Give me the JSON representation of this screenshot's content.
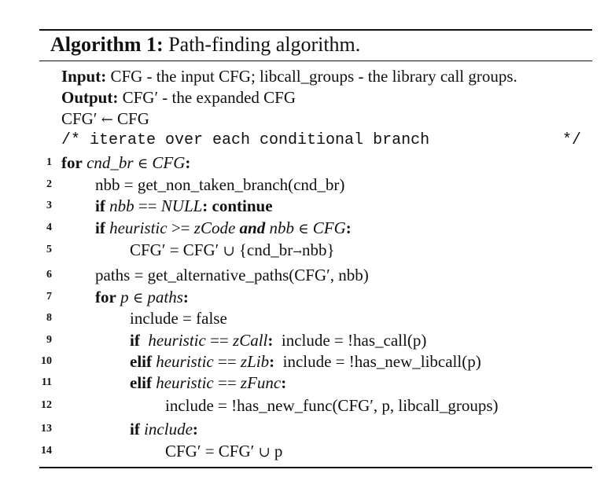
{
  "algorithm": {
    "label": "Algorithm 1:",
    "title": "Path-finding algorithm."
  },
  "header": {
    "input_label": "Input:",
    "input_text": "CFG - the input CFG; libcall_groups - the library call groups.",
    "output_label": "Output:",
    "output_text": "CFG′ - the expanded CFG",
    "init_lhs": "CFG′",
    "init_arrow": "←",
    "init_rhs": "CFG",
    "comment_text": "/* iterate over each conditional branch",
    "comment_end": "*/"
  },
  "lines": {
    "l1": {
      "num": "1",
      "kw": "for",
      "a": "cnd_br",
      "op": "∈",
      "b": "CFG",
      "colon": ":"
    },
    "l2": {
      "num": "2",
      "text": "nbb = get_non_taken_branch(cnd_br)"
    },
    "l3": {
      "num": "3",
      "kw": "if",
      "cond": "nbb",
      "eq": " == ",
      "val": "NULL",
      "colon": ":",
      "kw2": "continue"
    },
    "l4": {
      "num": "4",
      "kw": "if",
      "a": "heuristic",
      "op": " >= ",
      "b": "zCode",
      "and": "and",
      "c": "nbb",
      "in": "∈",
      "d": "CFG",
      "colon": ":"
    },
    "l5": {
      "num": "5",
      "text1": "CFG′ = CFG′ ",
      "cup": "∪",
      "text2": " {cnd_br",
      "arrow": "→",
      "text3": "nbb}"
    },
    "l6": {
      "num": "6",
      "text": "paths = get_alternative_paths(CFG′, nbb)"
    },
    "l7": {
      "num": "7",
      "kw": "for",
      "a": "p",
      "op": "∈",
      "b": "paths",
      "colon": ":"
    },
    "l8": {
      "num": "8",
      "text": "include = false"
    },
    "l9": {
      "num": "9",
      "kw": "if",
      "a": "heuristic",
      "eq": " == ",
      "b": "zCall",
      "colon": ":",
      "text": "include = !has_call(p)"
    },
    "l10": {
      "num": "10",
      "kw": "elif",
      "a": "heuristic",
      "eq": " == ",
      "b": "zLib",
      "colon": ":",
      "text": "include = !has_new_libcall(p)"
    },
    "l11": {
      "num": "11",
      "kw": "elif",
      "a": "heuristic",
      "eq": " == ",
      "b": "zFunc",
      "colon": ":"
    },
    "l12": {
      "num": "12",
      "text": "include = !has_new_func(CFG′, p, libcall_groups)"
    },
    "l13": {
      "num": "13",
      "kw": "if",
      "a": "include",
      "colon": ":"
    },
    "l14": {
      "num": "14",
      "text1": "CFG′ = CFG′ ",
      "cup": "∪",
      "text2": " p"
    }
  }
}
